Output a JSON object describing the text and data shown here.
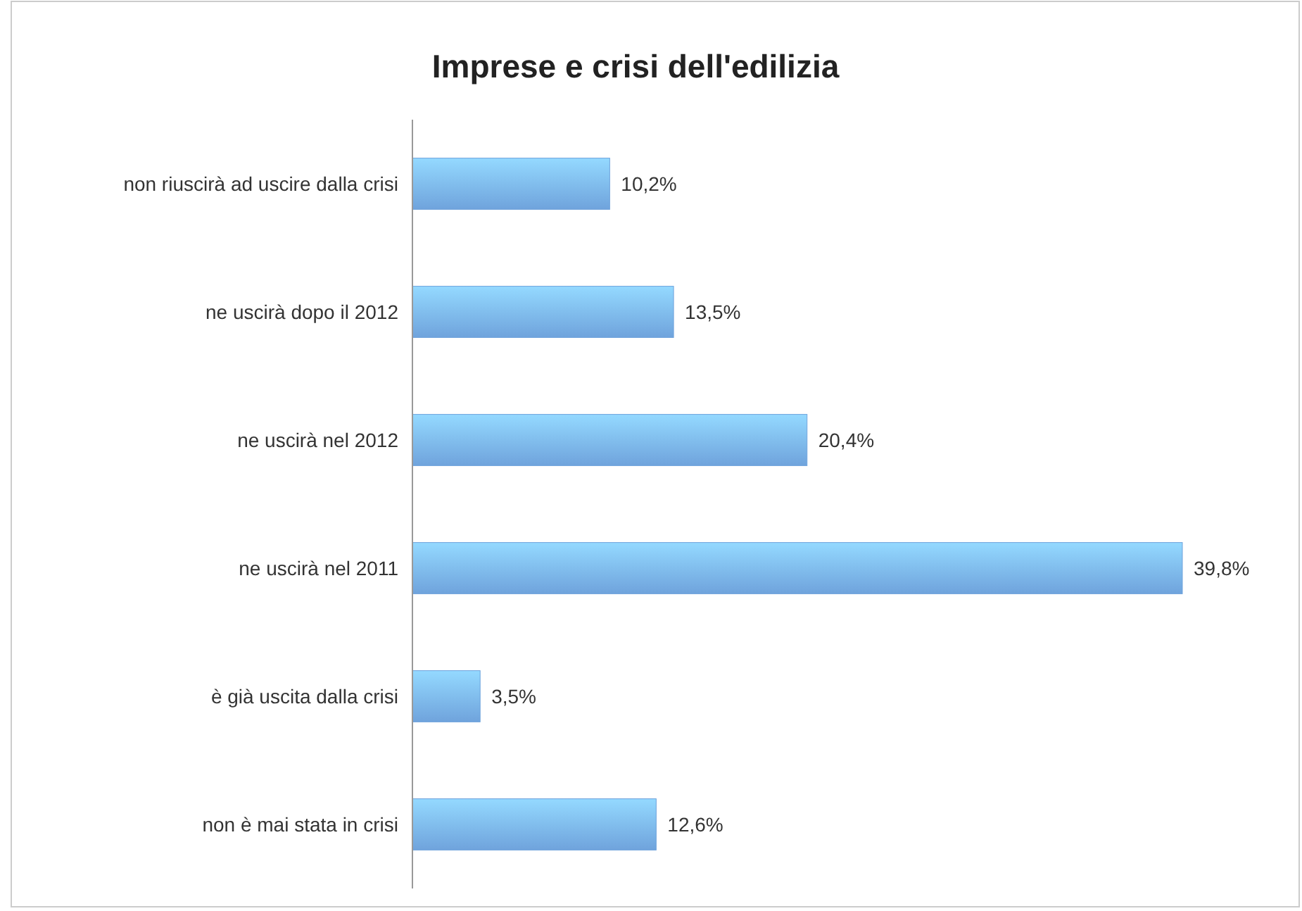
{
  "chart_data": {
    "type": "bar",
    "orientation": "horizontal",
    "title": "Imprese e crisi dell'edilizia",
    "categories": [
      "non riuscirà ad uscire dalla crisi",
      "ne uscirà dopo il 2012",
      "ne uscirà nel 2012",
      "ne uscirà nel 2011",
      "è già uscita dalla crisi",
      "non è mai stata in crisi"
    ],
    "values": [
      10.2,
      13.5,
      20.4,
      39.8,
      3.5,
      12.6
    ],
    "value_labels": [
      "10,2%",
      "13,5%",
      "20,4%",
      "39,8%",
      "3,5%",
      "12,6%"
    ],
    "color": "#6fa3dc"
  }
}
